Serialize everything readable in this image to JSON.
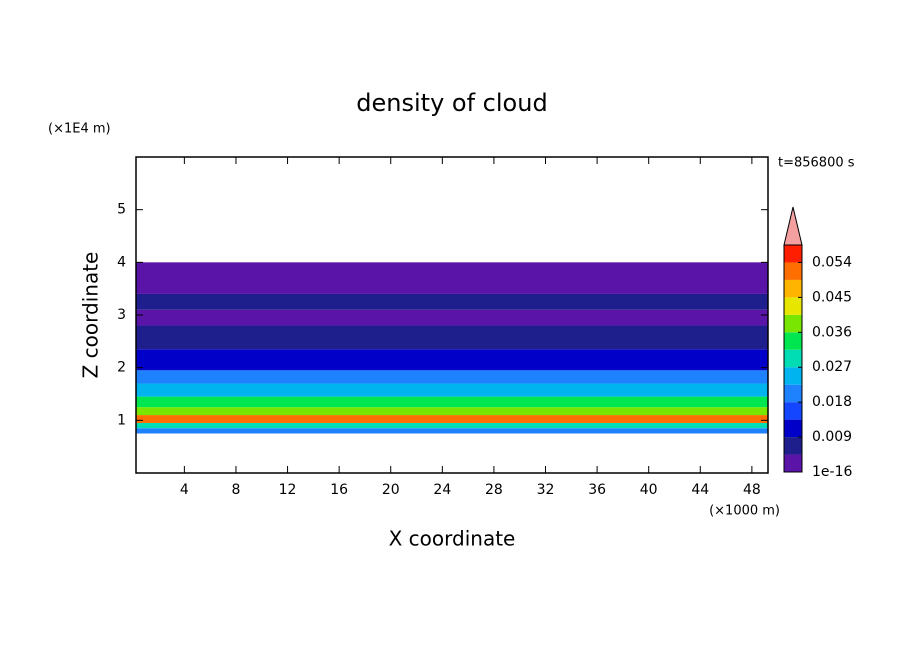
{
  "chart_data": {
    "type": "layered-contour",
    "title": "density of cloud",
    "x_label": "X coordinate",
    "y_label": "Z coordinate",
    "x_unit": "(×1000 m)",
    "y_unit": "(×1E4 m)",
    "annotation": "t=856800 s",
    "xlim": [
      0.25,
      49.25
    ],
    "xticks": [
      4,
      8,
      12,
      16,
      20,
      24,
      28,
      32,
      36,
      40,
      44,
      48
    ],
    "ylim": [
      0,
      6
    ],
    "yticks": [
      1,
      2,
      3,
      4,
      5
    ],
    "z_bottom": [
      0.75,
      0.85,
      0.95,
      1.1,
      1.25,
      1.45,
      1.7,
      1.95,
      2.35,
      2.8,
      3.1,
      3.4
    ],
    "z_top": [
      0.85,
      0.95,
      1.1,
      1.25,
      1.45,
      1.7,
      1.95,
      2.35,
      2.8,
      3.1,
      3.4,
      4.0
    ],
    "values": [
      0.02,
      0.03,
      0.05,
      0.04,
      0.033,
      0.025,
      0.02,
      0.011,
      0.006,
      0.002,
      0.007,
      0.002
    ],
    "clim": [
      1e-16,
      0.0585
    ],
    "colors": [
      "#5a14a8",
      "#1e1e8c",
      "#0000c8",
      "#1446ff",
      "#1e82ff",
      "#00b4f0",
      "#00dcb4",
      "#00e650",
      "#78e600",
      "#e6e600",
      "#ffb400",
      "#ff6e00",
      "#ff1e00"
    ],
    "extend_color": "#f4a0a0",
    "cticks": [
      {
        "value": 1e-16,
        "label": "1e-16"
      },
      0.009,
      0.018,
      0.027,
      0.036,
      0.045,
      0.054
    ]
  }
}
